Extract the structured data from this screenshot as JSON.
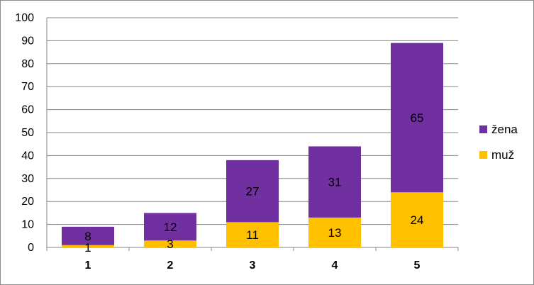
{
  "chart_data": {
    "type": "bar",
    "stacked": true,
    "categories": [
      "1",
      "2",
      "3",
      "4",
      "5"
    ],
    "series": [
      {
        "name": "muž",
        "values": [
          1,
          3,
          11,
          13,
          24
        ],
        "color": "#ffc000"
      },
      {
        "name": "žena",
        "values": [
          8,
          12,
          27,
          31,
          65
        ],
        "color": "#7030a0"
      }
    ],
    "ylim": [
      0,
      100
    ],
    "yticks": [
      0,
      10,
      20,
      30,
      40,
      50,
      60,
      70,
      80,
      90,
      100
    ],
    "grid": true,
    "legend": {
      "position": "right",
      "order": [
        "žena",
        "muž"
      ]
    }
  }
}
